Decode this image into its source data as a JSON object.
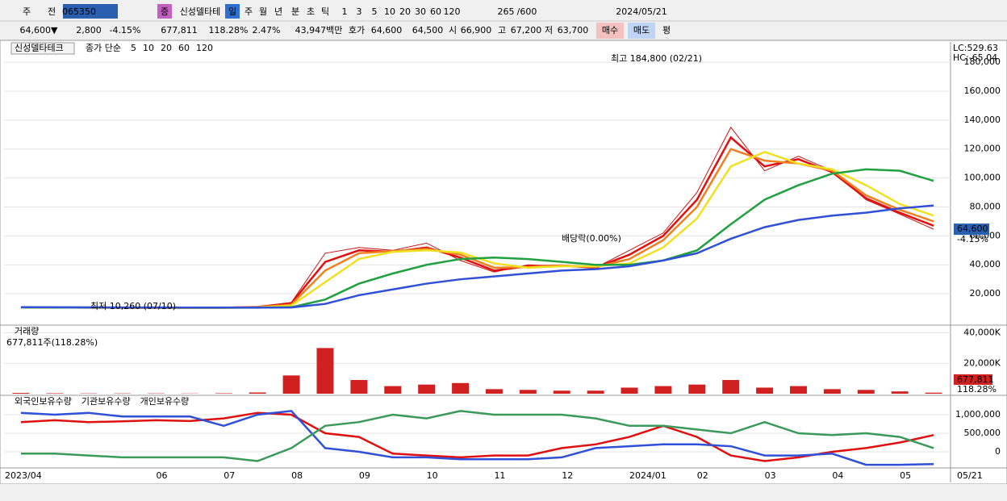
{
  "toolbar": {
    "items": [
      "주",
      "전",
      "065350",
      "증",
      "신성델타테",
      "일",
      "주",
      "월",
      "년",
      "분",
      "초",
      "틱",
      "1",
      "3",
      "5",
      "10",
      "20",
      "30",
      "60",
      "120",
      "265",
      "/600",
      "2024/05/21"
    ]
  },
  "quote_bar": {
    "items": [
      "64,600▼",
      "2,800",
      "-4.15%",
      "677,811",
      "118.28%",
      "2.47%",
      "43,947백만",
      "호가",
      "64,600",
      "64,500",
      "시",
      "66,900",
      "고",
      "67,200",
      "저",
      "63,700",
      "매수",
      "매도",
      "평"
    ]
  },
  "chart_data": [
    {
      "type": "line",
      "stock_name": "신성델타테크",
      "legend_title": "종가 단순",
      "categories": [
        "2023/04",
        null,
        null,
        null,
        "06",
        null,
        "07",
        null,
        "08",
        null,
        "09",
        null,
        "10",
        null,
        "11",
        null,
        "12",
        null,
        "2024/01",
        null,
        "02",
        null,
        "03",
        null,
        "04",
        null,
        "05",
        null
      ],
      "end_date": "05/21",
      "series": [
        {
          "color": "#c81414",
          "values": [
            10500,
            10500,
            10400,
            10300,
            10300,
            10260,
            10400,
            11000,
            14000,
            48000,
            52000,
            50000,
            55000,
            43000,
            35000,
            40000,
            39000,
            38000,
            50000,
            62000,
            90000,
            135000,
            105000,
            115000,
            105000,
            85000,
            75000,
            64600
          ]
        },
        {
          "name": "5",
          "color": "#e01010",
          "values": [
            10500,
            10500,
            10400,
            10350,
            10300,
            10280,
            10350,
            10900,
            13500,
            42000,
            50000,
            49000,
            52000,
            45000,
            36000,
            39000,
            39500,
            38000,
            47000,
            60000,
            85000,
            128000,
            108000,
            113000,
            104000,
            86000,
            76000,
            67000
          ]
        },
        {
          "name": "10",
          "color": "#f08020",
          "values": [
            10500,
            10500,
            10450,
            10380,
            10320,
            10300,
            10330,
            10700,
            12500,
            36000,
            48000,
            49500,
            51000,
            47000,
            38000,
            38500,
            39500,
            38500,
            44000,
            57000,
            80000,
            120000,
            112000,
            110000,
            105000,
            88000,
            78000,
            70000
          ]
        },
        {
          "name": "20",
          "color": "#f0e020",
          "values": [
            10500,
            10500,
            10480,
            10420,
            10350,
            10320,
            10320,
            10500,
            11800,
            28000,
            44000,
            49000,
            50000,
            48500,
            41000,
            38000,
            39000,
            39000,
            41000,
            52000,
            72000,
            108000,
            118000,
            110000,
            106000,
            95000,
            82000,
            74000
          ]
        },
        {
          "name": "60",
          "color": "#20a040",
          "values": [
            10600,
            10550,
            10500,
            10480,
            10450,
            10400,
            10380,
            10400,
            10700,
            16000,
            27000,
            34000,
            40000,
            44000,
            45000,
            44000,
            42000,
            40000,
            40000,
            43000,
            50000,
            68000,
            85000,
            95000,
            103000,
            106000,
            105000,
            98000
          ]
        },
        {
          "name": "120",
          "color": "#3050d8",
          "values": [
            10700,
            10650,
            10600,
            10550,
            10500,
            10480,
            10450,
            10450,
            10500,
            13000,
            19000,
            23000,
            27000,
            30000,
            32000,
            34000,
            36000,
            37000,
            39000,
            43000,
            48000,
            58000,
            66000,
            71000,
            74000,
            76000,
            79000,
            81000
          ]
        }
      ],
      "ylim": [
        0,
        194000
      ],
      "yticks": [
        {
          "value": 20000,
          "label": "20,000"
        },
        {
          "value": 40000,
          "label": "40,000"
        },
        {
          "value": 60000,
          "label": "60,000"
        },
        {
          "value": 80000,
          "label": "80,000"
        },
        {
          "value": 100000,
          "label": "100,000"
        },
        {
          "value": 120000,
          "label": "120,000"
        },
        {
          "value": 140000,
          "label": "140,000"
        },
        {
          "value": 160000,
          "label": "160,000"
        },
        {
          "value": 180000,
          "label": "180,000"
        }
      ],
      "grid": true,
      "high_label": "최고 184,800 (02/21)",
      "low_label": "최저 10,260 (07/10)",
      "dividend_label": "배당락(0.00%)",
      "lc_label": "LC:529.63",
      "hc_label": "HC:-65.04",
      "last_value": {
        "value": 64600,
        "label": "64,600"
      },
      "change_label": "-4.15%"
    },
    {
      "type": "bar",
      "title": "거래량",
      "subtitle": "677,811주(118.28%)",
      "color": "#d02020",
      "values": [
        500,
        300,
        200,
        200,
        200,
        150,
        300,
        800,
        12000,
        30000,
        9000,
        5000,
        6000,
        7000,
        3000,
        2500,
        2000,
        2000,
        4000,
        5000,
        6000,
        9000,
        4000,
        5000,
        3000,
        2500,
        1500,
        677.811
      ],
      "ylim": [
        0,
        44000
      ],
      "yticks": [
        {
          "value": 20000,
          "label": "20,000K"
        },
        {
          "value": 40000,
          "label": "40,000K"
        }
      ],
      "grid": true,
      "last_label": "677,811",
      "ratio_label": "118.28%"
    },
    {
      "type": "line",
      "series": [
        {
          "name": "외국인보유수량",
          "color": "#e01010",
          "values": [
            800000,
            850000,
            800000,
            820000,
            850000,
            830000,
            900000,
            1050000,
            1000000,
            500000,
            400000,
            -50000,
            -100000,
            -150000,
            -100000,
            -100000,
            100000,
            200000,
            400000,
            700000,
            400000,
            -100000,
            -250000,
            -150000,
            0,
            100000,
            250000,
            450000
          ]
        },
        {
          "name": "기관보유수량",
          "color": "#3050d8",
          "values": [
            1050000,
            1000000,
            1050000,
            950000,
            950000,
            950000,
            700000,
            1000000,
            1100000,
            100000,
            0,
            -150000,
            -150000,
            -200000,
            -200000,
            -200000,
            -150000,
            100000,
            150000,
            200000,
            200000,
            150000,
            -100000,
            -100000,
            -50000,
            -350000,
            -350000,
            -330000
          ]
        },
        {
          "name": "개인보유수량",
          "color": "#3a9a5a",
          "values": [
            -50000,
            -50000,
            -100000,
            -150000,
            -150000,
            -150000,
            -150000,
            -250000,
            100000,
            700000,
            800000,
            1000000,
            900000,
            1100000,
            1000000,
            1000000,
            1000000,
            900000,
            700000,
            700000,
            600000,
            500000,
            800000,
            500000,
            450000,
            500000,
            400000,
            100000
          ]
        }
      ],
      "ylim": [
        -391000,
        1478000
      ],
      "yticks": [
        0,
        {
          "value": 500000,
          "label": "500,000"
        },
        {
          "value": 1000000,
          "label": "1,000,000"
        }
      ],
      "grid": true
    }
  ]
}
